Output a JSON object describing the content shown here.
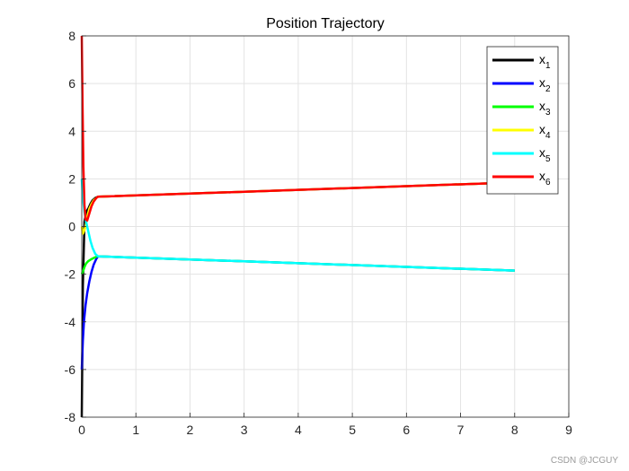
{
  "chart_data": {
    "type": "line",
    "title": "Position Trajectory",
    "xlabel": "",
    "ylabel": "",
    "xlim": [
      0,
      9
    ],
    "ylim": [
      -8,
      8
    ],
    "xticks": [
      0,
      1,
      2,
      3,
      4,
      5,
      6,
      7,
      8,
      9
    ],
    "yticks": [
      -8,
      -6,
      -4,
      -2,
      0,
      2,
      4,
      6,
      8
    ],
    "grid": true,
    "legend_position": "top-right",
    "series": [
      {
        "name": "x",
        "sub": "1",
        "color": "#000000",
        "x": [
          0,
          0.02,
          0.05,
          0.08,
          0.12,
          0.16,
          0.2,
          0.25,
          0.3,
          8
        ],
        "y": [
          -8,
          -2.5,
          0.2,
          0.6,
          0.75,
          0.95,
          1.1,
          1.2,
          1.25,
          1.85
        ]
      },
      {
        "name": "x",
        "sub": "2",
        "color": "#0000ff",
        "x": [
          0,
          0.02,
          0.04,
          0.07,
          0.1,
          0.14,
          0.18,
          0.22,
          0.27,
          0.3,
          8
        ],
        "y": [
          -6,
          -4.8,
          -4.0,
          -3.3,
          -2.8,
          -2.3,
          -1.9,
          -1.6,
          -1.35,
          -1.25,
          -1.85
        ]
      },
      {
        "name": "x",
        "sub": "3",
        "color": "#00ff00",
        "x": [
          0,
          0.02,
          0.05,
          0.08,
          0.12,
          0.17,
          0.22,
          0.27,
          0.3,
          8
        ],
        "y": [
          -2,
          -1.9,
          -1.7,
          -1.55,
          -1.45,
          -1.38,
          -1.32,
          -1.27,
          -1.25,
          -1.85
        ]
      },
      {
        "name": "x",
        "sub": "4",
        "color": "#ffff00",
        "x": [
          0,
          0.02,
          0.04,
          0.07,
          0.1,
          0.14,
          0.18,
          0.22,
          0.27,
          0.3,
          8
        ],
        "y": [
          0,
          -0.3,
          -0.2,
          0.0,
          0.4,
          0.75,
          0.95,
          1.1,
          1.2,
          1.25,
          1.85
        ]
      },
      {
        "name": "x",
        "sub": "5",
        "color": "#00ffff",
        "x": [
          0,
          0.02,
          0.05,
          0.08,
          0.12,
          0.16,
          0.2,
          0.25,
          0.3,
          8
        ],
        "y": [
          2,
          1.2,
          0.6,
          0.2,
          -0.2,
          -0.6,
          -0.9,
          -1.15,
          -1.25,
          -1.85
        ]
      },
      {
        "name": "x",
        "sub": "6",
        "color": "#ff0000",
        "x": [
          0,
          0.015,
          0.03,
          0.05,
          0.07,
          0.1,
          0.14,
          0.18,
          0.22,
          0.27,
          0.3,
          8
        ],
        "y": [
          8,
          5.0,
          2.5,
          0.9,
          0.3,
          0.25,
          0.55,
          0.85,
          1.05,
          1.2,
          1.25,
          1.85
        ]
      }
    ]
  },
  "watermark": "CSDN @JCGUY"
}
